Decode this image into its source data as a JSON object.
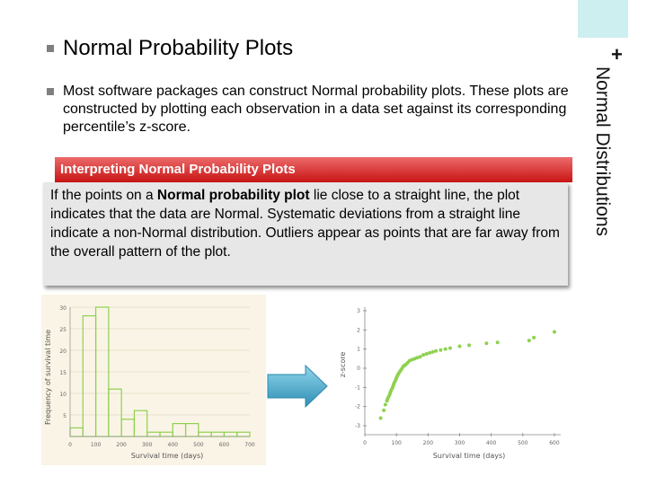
{
  "slide": {
    "side_title": "Normal Distributions",
    "plus_mark": "+",
    "title": "Normal  Probability Plots",
    "body": "Most software packages can construct Normal probability plots. These plots are constructed by plotting each observation in a data set against its corresponding percentile’s z-score.",
    "box": {
      "heading": "Interpreting Normal Probability Plots",
      "text_before": "If the points on a ",
      "text_bold": "Normal probability plot",
      "text_after": " lie close to a straight line, the plot indicates that the data are Normal. Systematic deviations from a straight line indicate a non-Normal distribution. Outliers appear as points that are far away from the overall pattern of the plot."
    },
    "colors": {
      "accent_red": "#c81414",
      "box_gray": "#e7e7e7",
      "tab_cyan": "#cdeff0",
      "plot_green": "#8ed14e",
      "arrow_blue": "#3fa7c8"
    },
    "arrow_icon": "right-arrow-icon"
  },
  "chart_data": [
    {
      "type": "bar",
      "xlabel": "Survival time (days)",
      "ylabel": "Frequency of survival time",
      "x_ticks": [
        "0",
        "100",
        "200",
        "300",
        "400",
        "500",
        "600",
        "700"
      ],
      "y_ticks": [
        "5",
        "10",
        "15",
        "20",
        "25",
        "30"
      ],
      "bin_starts": [
        0,
        50,
        100,
        150,
        200,
        250,
        300,
        350,
        400,
        450,
        500,
        550,
        600,
        650
      ],
      "values": [
        2,
        28,
        30,
        11,
        4,
        6,
        1,
        1,
        3,
        3,
        1,
        1,
        1,
        1
      ],
      "xlim": [
        0,
        700
      ],
      "ylim": [
        0,
        30
      ]
    },
    {
      "type": "scatter",
      "xlabel": "Survival time (days)",
      "ylabel": "z-score",
      "x_ticks": [
        "0",
        "100",
        "200",
        "300",
        "400",
        "500",
        "600"
      ],
      "y_ticks": [
        "-3",
        "-2",
        "-1",
        "0",
        "1",
        "2",
        "3"
      ],
      "xlim": [
        0,
        620
      ],
      "ylim": [
        -3,
        3
      ],
      "points": [
        [
          50,
          -2.6
        ],
        [
          60,
          -2.2
        ],
        [
          65,
          -1.9
        ],
        [
          70,
          -1.7
        ],
        [
          72,
          -1.6
        ],
        [
          75,
          -1.5
        ],
        [
          78,
          -1.4
        ],
        [
          80,
          -1.3
        ],
        [
          82,
          -1.2
        ],
        [
          85,
          -1.1
        ],
        [
          88,
          -1.0
        ],
        [
          90,
          -0.9
        ],
        [
          92,
          -0.8
        ],
        [
          95,
          -0.7
        ],
        [
          98,
          -0.6
        ],
        [
          100,
          -0.5
        ],
        [
          103,
          -0.4
        ],
        [
          106,
          -0.3
        ],
        [
          110,
          -0.2
        ],
        [
          114,
          -0.1
        ],
        [
          118,
          0.0
        ],
        [
          122,
          0.1
        ],
        [
          126,
          0.15
        ],
        [
          130,
          0.2
        ],
        [
          136,
          0.3
        ],
        [
          142,
          0.4
        ],
        [
          150,
          0.45
        ],
        [
          158,
          0.5
        ],
        [
          166,
          0.55
        ],
        [
          175,
          0.6
        ],
        [
          185,
          0.7
        ],
        [
          195,
          0.75
        ],
        [
          205,
          0.8
        ],
        [
          215,
          0.85
        ],
        [
          225,
          0.9
        ],
        [
          240,
          0.95
        ],
        [
          255,
          1.0
        ],
        [
          270,
          1.05
        ],
        [
          300,
          1.15
        ],
        [
          330,
          1.2
        ],
        [
          385,
          1.3
        ],
        [
          420,
          1.35
        ],
        [
          520,
          1.45
        ],
        [
          535,
          1.6
        ],
        [
          600,
          1.9
        ]
      ]
    }
  ]
}
